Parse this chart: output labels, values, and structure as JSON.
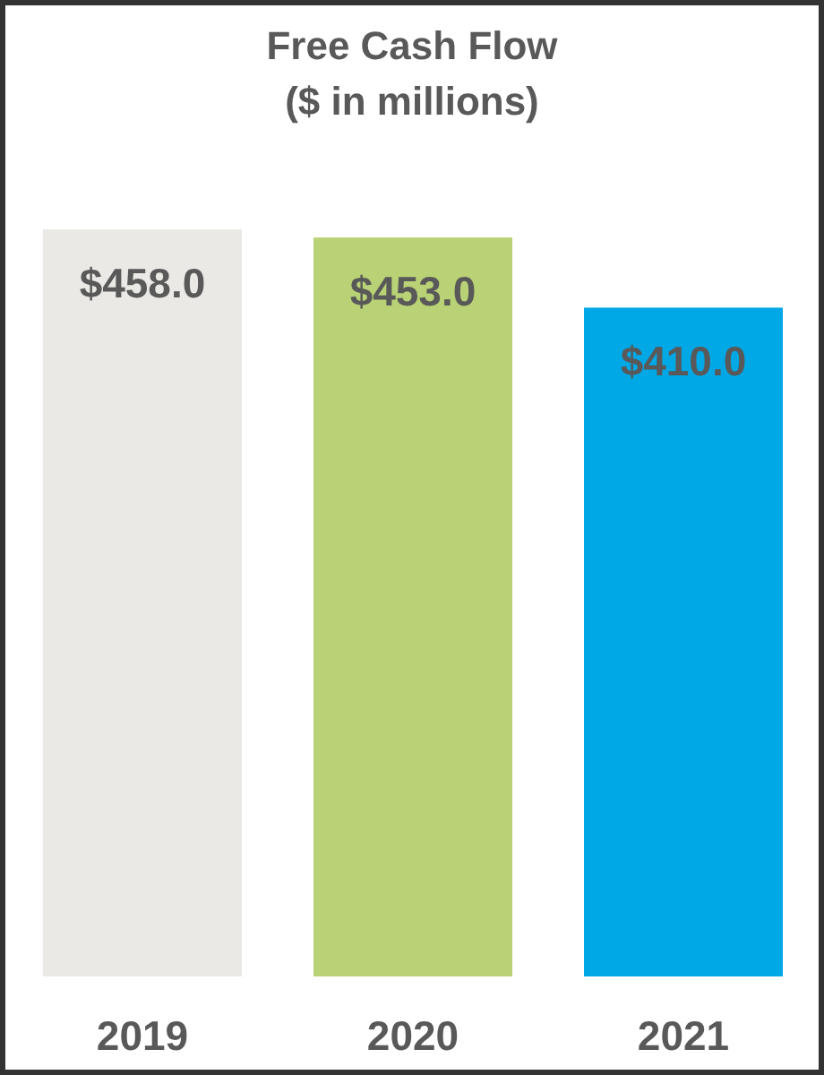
{
  "chart_data": {
    "type": "bar",
    "title": "Free Cash Flow",
    "subtitle": "($ in millions)",
    "categories": [
      "2019",
      "2020",
      "2021"
    ],
    "values": [
      458.0,
      453.0,
      410.0
    ],
    "colors": [
      "#ebe9e6",
      "#b9d275",
      "#00a8e6"
    ],
    "value_labels": [
      "$458.0",
      "$453.0",
      "$410.0"
    ]
  }
}
